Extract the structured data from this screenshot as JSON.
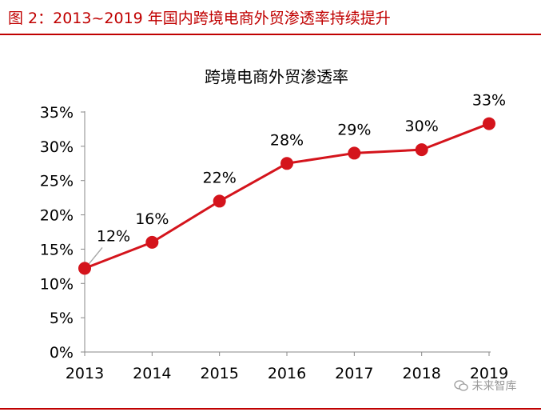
{
  "figure_title": "图 2：2013~2019 年国内跨境电商外贸渗透率持续提升",
  "watermark": "未来智库",
  "watermark_icon": "wechat-icon",
  "accent_color": "#c00000",
  "chart_data": {
    "type": "line",
    "title": "跨境电商外贸渗透率",
    "xlabel": "",
    "ylabel": "",
    "categories": [
      "2013",
      "2014",
      "2015",
      "2016",
      "2017",
      "2018",
      "2019"
    ],
    "series": [
      {
        "values": [
          12.2,
          16.0,
          22.0,
          27.5,
          29.0,
          29.5,
          33.3
        ],
        "labels": [
          "12%",
          "16%",
          "22%",
          "28%",
          "29%",
          "30%",
          "33%"
        ],
        "color": "#d4141c"
      }
    ],
    "yticks": [
      "0%",
      "5%",
      "10%",
      "15%",
      "20%",
      "25%",
      "30%",
      "35%"
    ],
    "ylim": [
      0,
      35
    ],
    "grid": false,
    "legend": false
  }
}
